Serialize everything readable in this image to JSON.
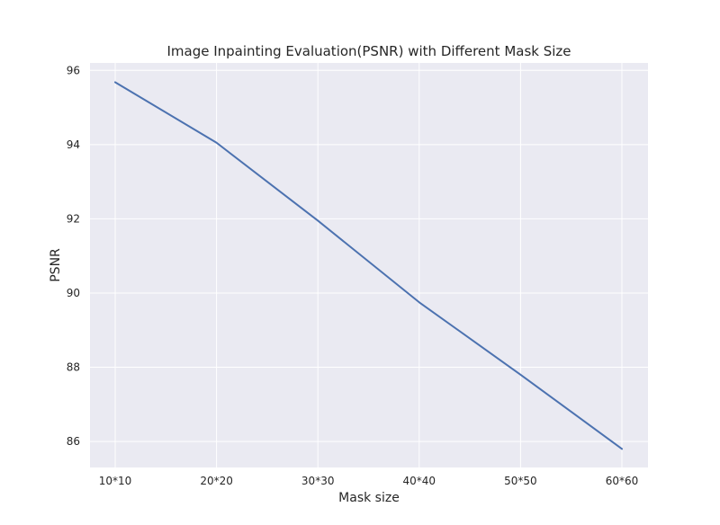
{
  "chart_data": {
    "type": "line",
    "title": "Image Inpainting Evaluation(PSNR) with Different Mask Size",
    "xlabel": "Mask size",
    "ylabel": "PSNR",
    "categories": [
      "10*10",
      "20*20",
      "30*30",
      "40*40",
      "50*50",
      "60*60"
    ],
    "series": [
      {
        "values": [
          95.68,
          94.05,
          91.95,
          89.75,
          87.8,
          85.8
        ]
      }
    ],
    "ylim": [
      85.3,
      96.2
    ],
    "yticks": [
      86,
      88,
      90,
      92,
      94,
      96
    ],
    "grid": true,
    "colors": {
      "plot_background": "#eaeaf2",
      "grid": "#ffffff",
      "line": "#4c72b0"
    }
  }
}
